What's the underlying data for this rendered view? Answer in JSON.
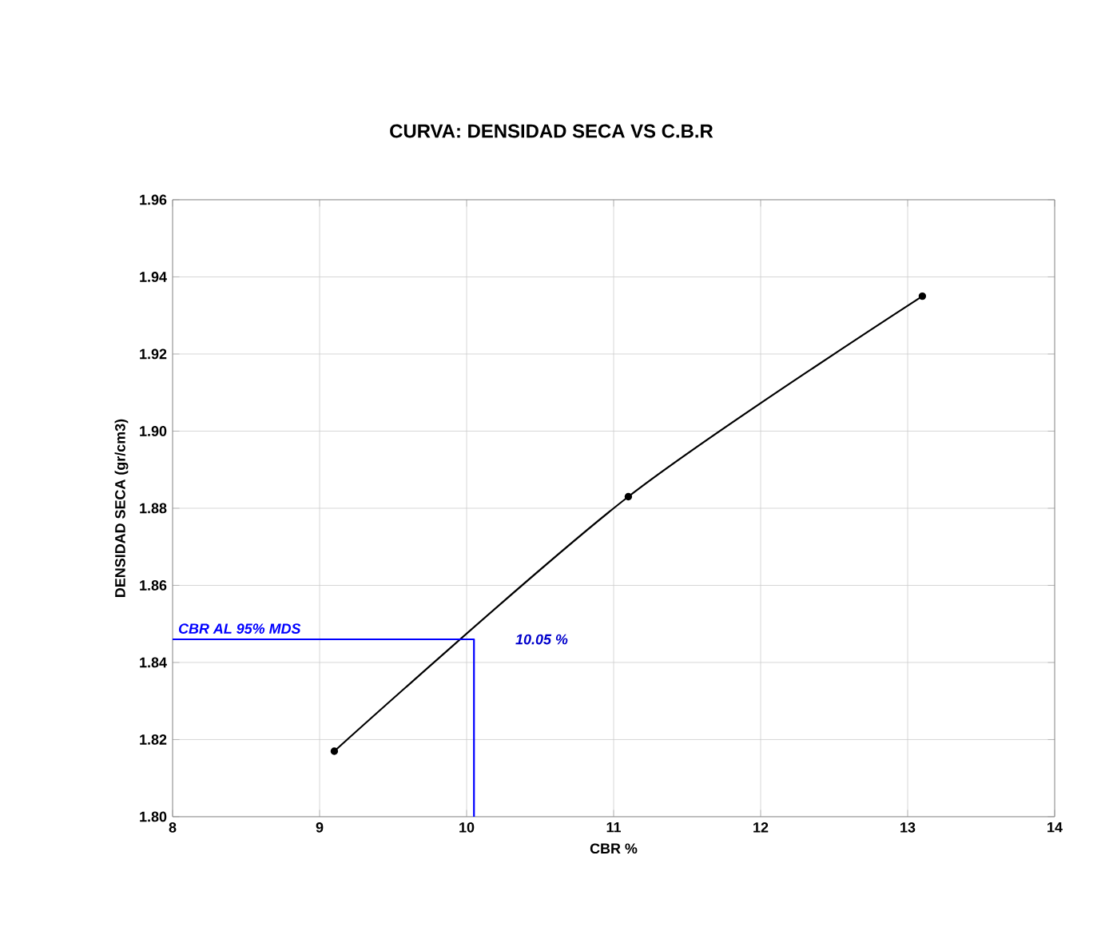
{
  "chart_data": {
    "type": "line",
    "title": "CURVA:  DENSIDAD SECA VS  C.B.R",
    "xlabel": "CBR %",
    "ylabel": "DENSIDAD SECA (gr/cm3)",
    "xlim": [
      8,
      14
    ],
    "xticks": [
      8,
      9,
      10,
      11,
      12,
      13,
      14
    ],
    "ylim": [
      1.8,
      1.96
    ],
    "yticks": [
      {
        "value": 1.8,
        "label": "1.80"
      },
      {
        "value": 1.82,
        "label": "1.82"
      },
      {
        "value": 1.84,
        "label": "1.84"
      },
      {
        "value": 1.86,
        "label": "1.86"
      },
      {
        "value": 1.88,
        "label": "1.88"
      },
      {
        "value": 1.9,
        "label": "1.90"
      },
      {
        "value": 1.92,
        "label": "1.92"
      },
      {
        "value": 1.94,
        "label": "1.94"
      },
      {
        "value": 1.96,
        "label": "1.96"
      }
    ],
    "grid": true,
    "series": [
      {
        "color": "#000000",
        "marker": "circle",
        "x": [
          9.1,
          11.1,
          13.1
        ],
        "values": [
          1.817,
          1.883,
          1.935
        ]
      },
      {
        "color": "#0000ff",
        "marker": "none",
        "x": [
          8,
          10.05,
          10.05
        ],
        "values": [
          1.846,
          1.846,
          1.8
        ]
      }
    ],
    "annotations": [
      {
        "text": "CBR AL 95% MDS",
        "y": 1.846
      },
      {
        "text": "10.05 %",
        "x": 10.05,
        "y": 1.846
      }
    ]
  }
}
